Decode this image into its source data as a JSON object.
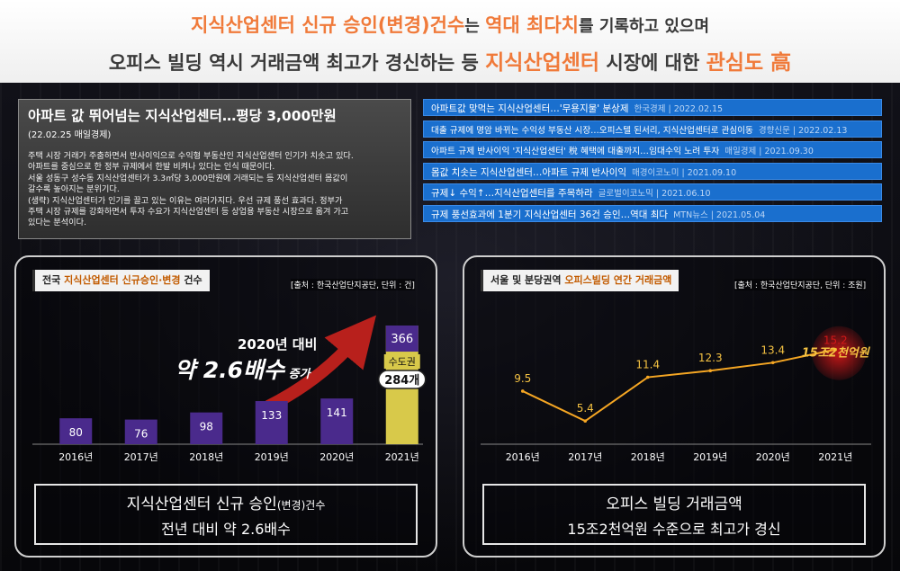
{
  "header": {
    "line1": {
      "part1": "지식산업센터 신규 승인(변경)건수",
      "part2": "는 ",
      "part3": "역대 최다치",
      "part4": "를 기록하고 있으며"
    },
    "line2": {
      "part1": "오피스 빌딩 역시 거래금액 최고가 경신하는 등 ",
      "part2": "지식산업센터",
      "part3": " 시장에 대한 ",
      "part4": "관심도 高"
    }
  },
  "article": {
    "title": "아파트 값 뛰어넘는 지식산업센터…평당 3,000만원",
    "source": "(22.02.25 매일경제)",
    "body": [
      "주택 시장 거래가 주춤하면서 반사이익으로 수익형 부동산인 지식산업센터 인기가 치솟고 있다.",
      "아파트를 중심으로 한 정부 규제에서 한발 비켜나 있다는 인식 때문이다.",
      "서울 성동구 성수동 지식산업센터가 3.3㎡당 3,000만원에 거래되는 등 지식산업센터 몸값이",
      "갈수록 높아지는 분위기다.",
      "(생략) 지식산업센터가 인기를 끌고 있는 이유는 여러가지다. 우선 규제 풍선 효과다. 정부가",
      "주택 시장 규제를 강화하면서 투자 수요가 지식산업센터 등 상업용 부동산 시장으로 옮겨 가고",
      "있다는 분석이다."
    ]
  },
  "news": [
    {
      "headline": "아파트값 맞먹는 지식산업센터…'무용지물' 분상제",
      "meta": "한국경제 | 2022.02.15"
    },
    {
      "headline": "대출 규제에 명암 바뀌는 수익성 부동산 시장…오피스텔 된서리, 지식산업센터로 관심이동",
      "meta": "경향신문 | 2022.02.13"
    },
    {
      "headline": "아파트 규제 반사이익 '지식산업센터' 稅 혜택에 대출까지…임대수익 노려 투자",
      "meta": "매일경제 | 2021.09.30"
    },
    {
      "headline": "몸값 치솟는 지식산업센터…아파트 규제 반사이익",
      "meta": "매경이코노미 | 2021.09.10"
    },
    {
      "headline": "규제↓ 수익↑…지식산업센터를 주목하라",
      "meta": "글로벌이코노믹 | 2021.06.10"
    },
    {
      "headline": "규제 풍선효과에 1분기 지식산업센터 36건 승인…역대 최다",
      "meta": "MTN뉴스 | 2021.05.04"
    }
  ],
  "left_panel": {
    "title_pre": "전국 ",
    "title_hl": "지식산업센터 신규승인·변경",
    "title_post": " 건수",
    "source": "[출처 : 한국산업단지공단, 단위 : 건]",
    "callout_line1": "2020년 대비",
    "callout_big": "약 2.6배수",
    "callout_small": " 증가",
    "sub_label": "수도권",
    "sub_value": "284개",
    "summary_l1_a": "지식산업센터 신규 승인",
    "summary_l1_b": "(변경)",
    "summary_l1_c": "건수",
    "summary_l2": "전년 대비 약 2.6배수",
    "colors": {
      "bar": "#4a2a8c",
      "highlight": "#d8c94a",
      "callout": "#f5a623",
      "arrow": "#b8201c"
    }
  },
  "right_panel": {
    "title_pre": "서울 및 분당권역 ",
    "title_hl": "오피스빌딩 연간 거래금액",
    "source": "[출처 : 한국산업단지공단, 단위 : 조원]",
    "badge": "15조2천억원",
    "summary_l1": "오피스 빌딩 거래금액",
    "summary_l2": "15조2천억원 수준으로 최고가 경신",
    "colors": {
      "line": "#f5a623",
      "label": "#f5c242",
      "badge": "#d01818"
    }
  },
  "chart_data": [
    {
      "type": "bar",
      "title": "전국 지식산업센터 신규승인·변경 건수",
      "categories": [
        "2016년",
        "2017년",
        "2018년",
        "2019년",
        "2020년",
        "2021년"
      ],
      "values": [
        80,
        76,
        98,
        133,
        141,
        366
      ],
      "unit": "건"
    },
    {
      "type": "line",
      "title": "서울 및 분당권역 오피스빌딩 연간 거래금액",
      "categories": [
        "2016년",
        "2017년",
        "2018년",
        "2019년",
        "2020년",
        "2021년"
      ],
      "values": [
        9.5,
        5.4,
        11.4,
        12.3,
        13.4,
        15.2
      ],
      "unit": "조원"
    }
  ]
}
